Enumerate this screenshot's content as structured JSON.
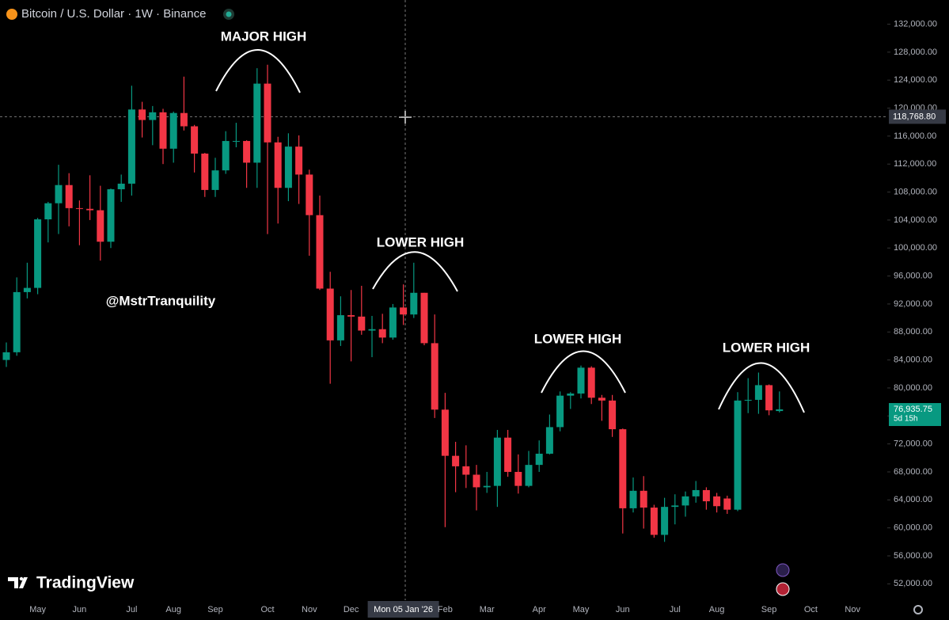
{
  "chart_data": {
    "type": "candlestick",
    "title": "Bitcoin / U.S. Dollar · 1W · Binance",
    "watermark": "@MstrTranquility",
    "logo": "TradingView",
    "annotations": [
      "MAJOR HIGH",
      "LOWER HIGH",
      "LOWER HIGH",
      "LOWER HIGH"
    ],
    "up_color": "#089981",
    "down_color": "#f23645",
    "categories": [
      null,
      null,
      null,
      "May",
      null,
      null,
      null,
      "Jun",
      null,
      null,
      null,
      null,
      "Jul",
      null,
      null,
      null,
      "Aug",
      null,
      null,
      null,
      "Sep",
      null,
      null,
      null,
      null,
      "Oct",
      null,
      null,
      null,
      "Nov",
      null,
      null,
      null,
      "Dec",
      null,
      null,
      null,
      null,
      "Mon 05 Jan '26",
      null,
      null,
      null,
      "Feb",
      null,
      null,
      null,
      "Mar",
      null,
      null,
      null,
      null,
      "Apr",
      null,
      null,
      null,
      "May",
      null,
      null,
      null,
      "Jun",
      null,
      null,
      null,
      null,
      "Jul",
      null,
      null,
      null,
      "Aug",
      null,
      null,
      null,
      null,
      "Sep",
      null,
      null,
      null,
      "Oct",
      null,
      null,
      null,
      "Nov"
    ],
    "open": [
      84000,
      85100,
      93700,
      94300,
      104100,
      106400,
      109000,
      105700,
      105600,
      105400,
      100900,
      108400,
      109200,
      119800,
      118300,
      119400,
      114200,
      119300,
      117400,
      113500,
      108300,
      111100,
      115300,
      115300,
      112200,
      123500,
      115100,
      108600,
      114500,
      110500,
      104700,
      94200,
      86800,
      90400,
      90200,
      88200,
      88400,
      87200,
      91500,
      90500,
      93600,
      86400,
      76900,
      70300,
      68800,
      67600,
      65800,
      66000,
      72900,
      68000,
      66000,
      69000,
      70600,
      74400,
      78900,
      79200,
      82900,
      78600,
      78200,
      74100,
      62800,
      65300,
      62900,
      59000,
      63000,
      63200,
      64500,
      65400,
      64500,
      64200,
      62600,
      78200,
      78300,
      80400,
      76700,
      null,
      null,
      null,
      null,
      null,
      null,
      null
    ],
    "high": [
      86500,
      95800,
      97900,
      104300,
      106600,
      111900,
      110700,
      106800,
      110400,
      108900,
      108500,
      110500,
      123200,
      120900,
      120300,
      119900,
      119500,
      124500,
      117600,
      113600,
      112900,
      116700,
      117900,
      115400,
      125700,
      126200,
      115900,
      116400,
      116100,
      111200,
      107500,
      96600,
      93100,
      94000,
      94600,
      90300,
      90600,
      92000,
      94800,
      97900,
      93600,
      90500,
      79300,
      72300,
      71800,
      69000,
      68000,
      74000,
      74000,
      70500,
      71000,
      72500,
      76200,
      79500,
      79400,
      83200,
      83100,
      79000,
      79000,
      74200,
      67200,
      67400,
      63300,
      64300,
      64800,
      65200,
      66700,
      65800,
      65000,
      64600,
      79400,
      81400,
      82200,
      80500,
      79500,
      null,
      null,
      null,
      null,
      null,
      null,
      null
    ],
    "low": [
      83000,
      84600,
      92800,
      93400,
      100800,
      102000,
      103100,
      100400,
      104000,
      98200,
      100000,
      106600,
      107500,
      115800,
      114700,
      112000,
      112200,
      116800,
      110800,
      107300,
      107300,
      110600,
      114400,
      108600,
      108600,
      102000,
      103500,
      106700,
      106300,
      98900,
      94000,
      80600,
      86000,
      83800,
      87600,
      84400,
      86400,
      86900,
      89000,
      90000,
      86100,
      75700,
      60100,
      65100,
      65700,
      62500,
      65000,
      63000,
      67300,
      64900,
      65800,
      68000,
      70500,
      73800,
      77000,
      78500,
      77700,
      75300,
      73000,
      59200,
      62200,
      59900,
      58600,
      58000,
      60500,
      61600,
      63600,
      62600,
      62200,
      62000,
      62400,
      76400,
      76300,
      76100,
      76500,
      null,
      null,
      null,
      null,
      null,
      null,
      null
    ],
    "close": [
      85100,
      93700,
      94300,
      104100,
      106400,
      109000,
      105700,
      105600,
      105400,
      100900,
      108400,
      109200,
      119800,
      118300,
      119400,
      114200,
      119300,
      117400,
      113500,
      108300,
      111100,
      115300,
      115300,
      112200,
      123500,
      115100,
      108600,
      114500,
      110500,
      104700,
      94200,
      86800,
      90400,
      90200,
      88200,
      88400,
      87200,
      91500,
      90500,
      93600,
      86400,
      76900,
      70300,
      68800,
      67600,
      65800,
      66000,
      72900,
      68000,
      66000,
      69000,
      70600,
      74400,
      78900,
      79200,
      82900,
      78600,
      78200,
      74100,
      62800,
      65300,
      62900,
      59000,
      63000,
      63200,
      64500,
      65400,
      63800,
      63100,
      62600,
      78200,
      78300,
      80400,
      76800,
      76935.75,
      null,
      null,
      null,
      null,
      null,
      null,
      null
    ],
    "ylim": [
      50000,
      135000
    ],
    "yticks": [
      {
        "value": 52000,
        "label": "52,000.00"
      },
      {
        "value": 56000,
        "label": "56,000.00"
      },
      {
        "value": 60000,
        "label": "60,000.00"
      },
      {
        "value": 64000,
        "label": "64,000.00"
      },
      {
        "value": 68000,
        "label": "68,000.00"
      },
      {
        "value": 72000,
        "label": "72,000.00"
      },
      {
        "value": 76000,
        "label": "76,000.00"
      },
      {
        "value": 80000,
        "label": "80,000.00"
      },
      {
        "value": 84000,
        "label": "84,000.00"
      },
      {
        "value": 88000,
        "label": "88,000.00"
      },
      {
        "value": 92000,
        "label": "92,000.00"
      },
      {
        "value": 96000,
        "label": "96,000.00"
      },
      {
        "value": 100000,
        "label": "100,000.00"
      },
      {
        "value": 104000,
        "label": "104,000.00"
      },
      {
        "value": 108000,
        "label": "108,000.00"
      },
      {
        "value": 112000,
        "label": "112,000.00"
      },
      {
        "value": 116000,
        "label": "116,000.00"
      },
      {
        "value": 120000,
        "label": "120,000.00"
      },
      {
        "value": 124000,
        "label": "124,000.00"
      },
      {
        "value": 128000,
        "label": "128,000.00"
      },
      {
        "value": 132000,
        "label": "132,000.00"
      }
    ],
    "crosshair_price": {
      "value": 118768.8,
      "label": "118,768.80"
    },
    "last_price": {
      "value": 76935.75,
      "label": "76,935.75"
    },
    "countdown": "5d 15h"
  }
}
